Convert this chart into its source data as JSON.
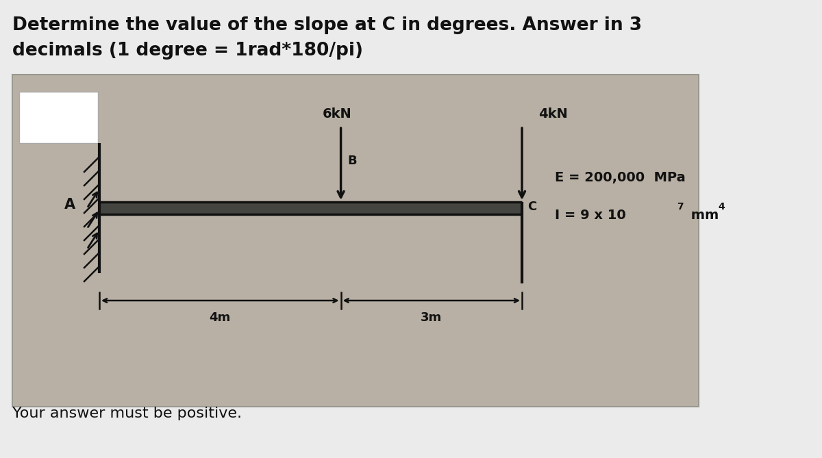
{
  "title_line1": "Determine the value of the slope at C in degrees. Answer in 3",
  "title_line2": "decimals (1 degree = 1rad*180/pi)",
  "footer": "Your answer must be positive.",
  "beam_label_A": "A",
  "beam_label_B": "B",
  "beam_label_C": "C",
  "load1_label": "6kN",
  "load2_label": "4kN",
  "dim1_label": "4m",
  "dim2_label": "3m",
  "E_label": "E = 200,000  MPa",
  "I_base": "I = 9 x 10",
  "I_exp": "7",
  "I_mm": " mm",
  "I_mm_exp": "4",
  "bg_color": "#b8b0a4",
  "beam_color": "#111111",
  "white_box_color": "#ffffff",
  "text_color": "#111111",
  "outer_bg": "#ebebeb",
  "box_edge": "#999990"
}
